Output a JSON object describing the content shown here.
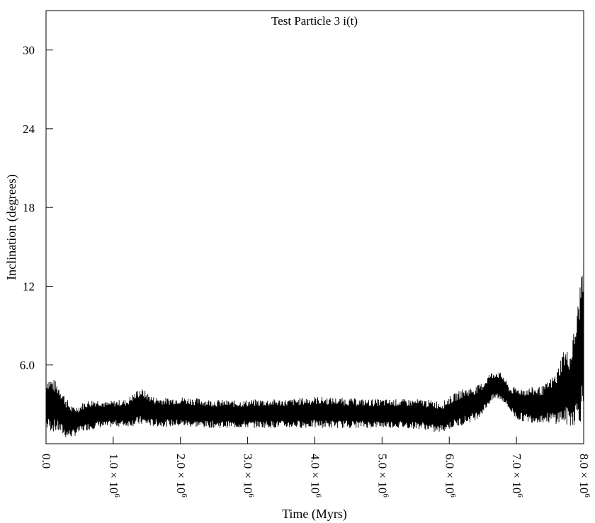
{
  "chart_data": {
    "type": "line",
    "title": "Test Particle 3 i(t)",
    "xlabel": "Time (Myrs)",
    "ylabel": "Inclination (degrees)",
    "xlim": [
      0,
      8000000
    ],
    "ylim": [
      0,
      33
    ],
    "grid": false,
    "line_color": "#000000",
    "x_ticks": [
      {
        "value": 0,
        "label": "0.0"
      },
      {
        "value": 1000000,
        "label": "1.0 × 10",
        "exp": "6"
      },
      {
        "value": 2000000,
        "label": "2.0 × 10",
        "exp": "6"
      },
      {
        "value": 3000000,
        "label": "3.0 × 10",
        "exp": "6"
      },
      {
        "value": 4000000,
        "label": "4.0 × 10",
        "exp": "6"
      },
      {
        "value": 5000000,
        "label": "5.0 × 10",
        "exp": "6"
      },
      {
        "value": 6000000,
        "label": "6.0 × 10",
        "exp": "6"
      },
      {
        "value": 7000000,
        "label": "7.0 × 10",
        "exp": "6"
      },
      {
        "value": 8000000,
        "label": "8.0 × 10",
        "exp": "6"
      }
    ],
    "y_ticks": [
      {
        "value": 6,
        "label": "6.0"
      },
      {
        "value": 12,
        "label": "12"
      },
      {
        "value": 18,
        "label": "18"
      },
      {
        "value": 24,
        "label": "24"
      },
      {
        "value": 30,
        "label": "30"
      }
    ],
    "series": [
      {
        "envelope": {
          "x": [
            0,
            100000,
            200000,
            300000,
            400000,
            500000,
            600000,
            700000,
            800000,
            900000,
            1000000,
            1200000,
            1400000,
            1600000,
            1800000,
            2000000,
            2400000,
            2800000,
            3200000,
            3600000,
            4000000,
            4400000,
            4800000,
            5200000,
            5600000,
            5800000,
            5900000,
            6000000,
            6200000,
            6400000,
            6500000,
            6600000,
            6700000,
            6800000,
            6900000,
            7000000,
            7200000,
            7400000,
            7600000,
            7700000,
            7800000,
            7900000,
            7950000,
            8000000
          ],
          "low": [
            1.0,
            0.9,
            0.8,
            0.4,
            0.5,
            0.8,
            1.0,
            1.1,
            1.2,
            1.2,
            1.3,
            1.3,
            1.4,
            1.3,
            1.3,
            1.3,
            1.2,
            1.2,
            1.2,
            1.2,
            1.2,
            1.2,
            1.2,
            1.2,
            1.1,
            0.8,
            0.9,
            1.1,
            1.4,
            1.8,
            2.3,
            3.0,
            3.4,
            3.2,
            2.5,
            1.8,
            1.6,
            1.6,
            1.5,
            1.4,
            1.3,
            1.4,
            1.6,
            2.0
          ],
          "high": [
            5.2,
            5.0,
            4.5,
            3.5,
            2.8,
            3.0,
            3.3,
            3.4,
            3.4,
            3.2,
            3.3,
            3.4,
            4.3,
            3.6,
            3.5,
            3.6,
            3.4,
            3.3,
            3.4,
            3.4,
            3.6,
            3.5,
            3.4,
            3.4,
            3.4,
            3.3,
            3.2,
            3.6,
            4.2,
            4.4,
            4.7,
            5.4,
            5.6,
            5.3,
            4.3,
            4.3,
            4.3,
            4.4,
            5.5,
            7.3,
            7.0,
            10.0,
            12.5,
            15.3
          ]
        }
      }
    ]
  }
}
